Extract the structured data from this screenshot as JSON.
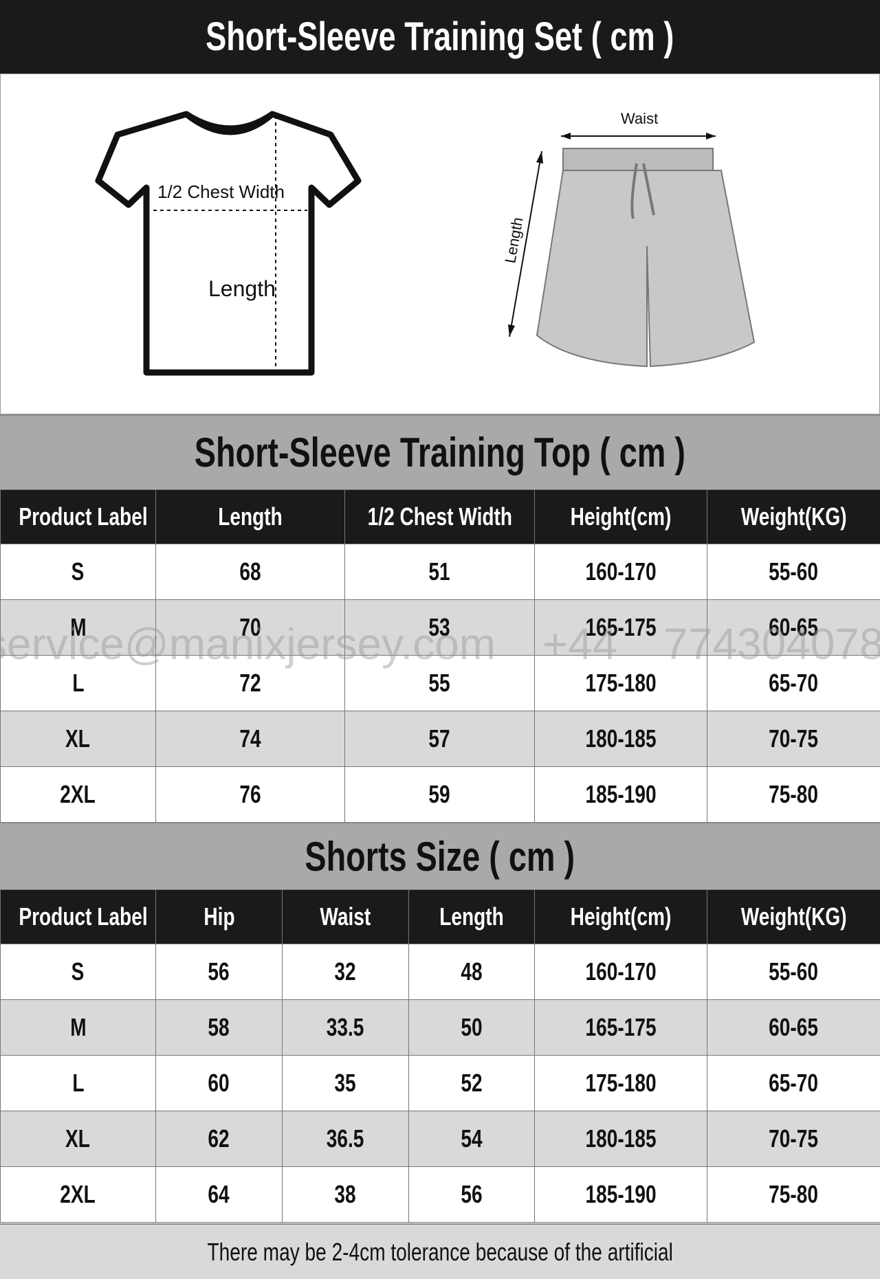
{
  "title": "Short-Sleeve Training Set ( cm )",
  "illustration": {
    "shirt_chest": "1/2 Chest Width",
    "shirt_length": "Length",
    "shorts_waist": "Waist",
    "shorts_length": "Length"
  },
  "top_table": {
    "title": "Short-Sleeve Training Top ( cm )",
    "headers": [
      "Product Label",
      "Length",
      "1/2 Chest Width",
      "Height(cm)",
      "Weight(KG)"
    ],
    "rows": [
      [
        "S",
        "68",
        "51",
        "160-170",
        "55-60"
      ],
      [
        "M",
        "70",
        "53",
        "165-175",
        "60-65"
      ],
      [
        "L",
        "72",
        "55",
        "175-180",
        "65-70"
      ],
      [
        "XL",
        "74",
        "57",
        "180-185",
        "70-75"
      ],
      [
        "2XL",
        "76",
        "59",
        "185-190",
        "75-80"
      ]
    ]
  },
  "shorts_table": {
    "title": "Shorts Size ( cm )",
    "headers": [
      "Product Label",
      "Hip",
      "Waist",
      "Length",
      "Height(cm)",
      "Weight(KG)"
    ],
    "rows": [
      [
        "S",
        "56",
        "32",
        "48",
        "160-170",
        "55-60"
      ],
      [
        "M",
        "58",
        "33.5",
        "50",
        "165-175",
        "60-65"
      ],
      [
        "L",
        "60",
        "35",
        "52",
        "175-180",
        "65-70"
      ],
      [
        "XL",
        "62",
        "36.5",
        "54",
        "180-185",
        "70-75"
      ],
      [
        "2XL",
        "64",
        "38",
        "56",
        "185-190",
        "75-80"
      ]
    ]
  },
  "watermark": "service@manixjersey.com +44 774304078",
  "footer": "There may be 2-4cm tolerance because of the artificial"
}
